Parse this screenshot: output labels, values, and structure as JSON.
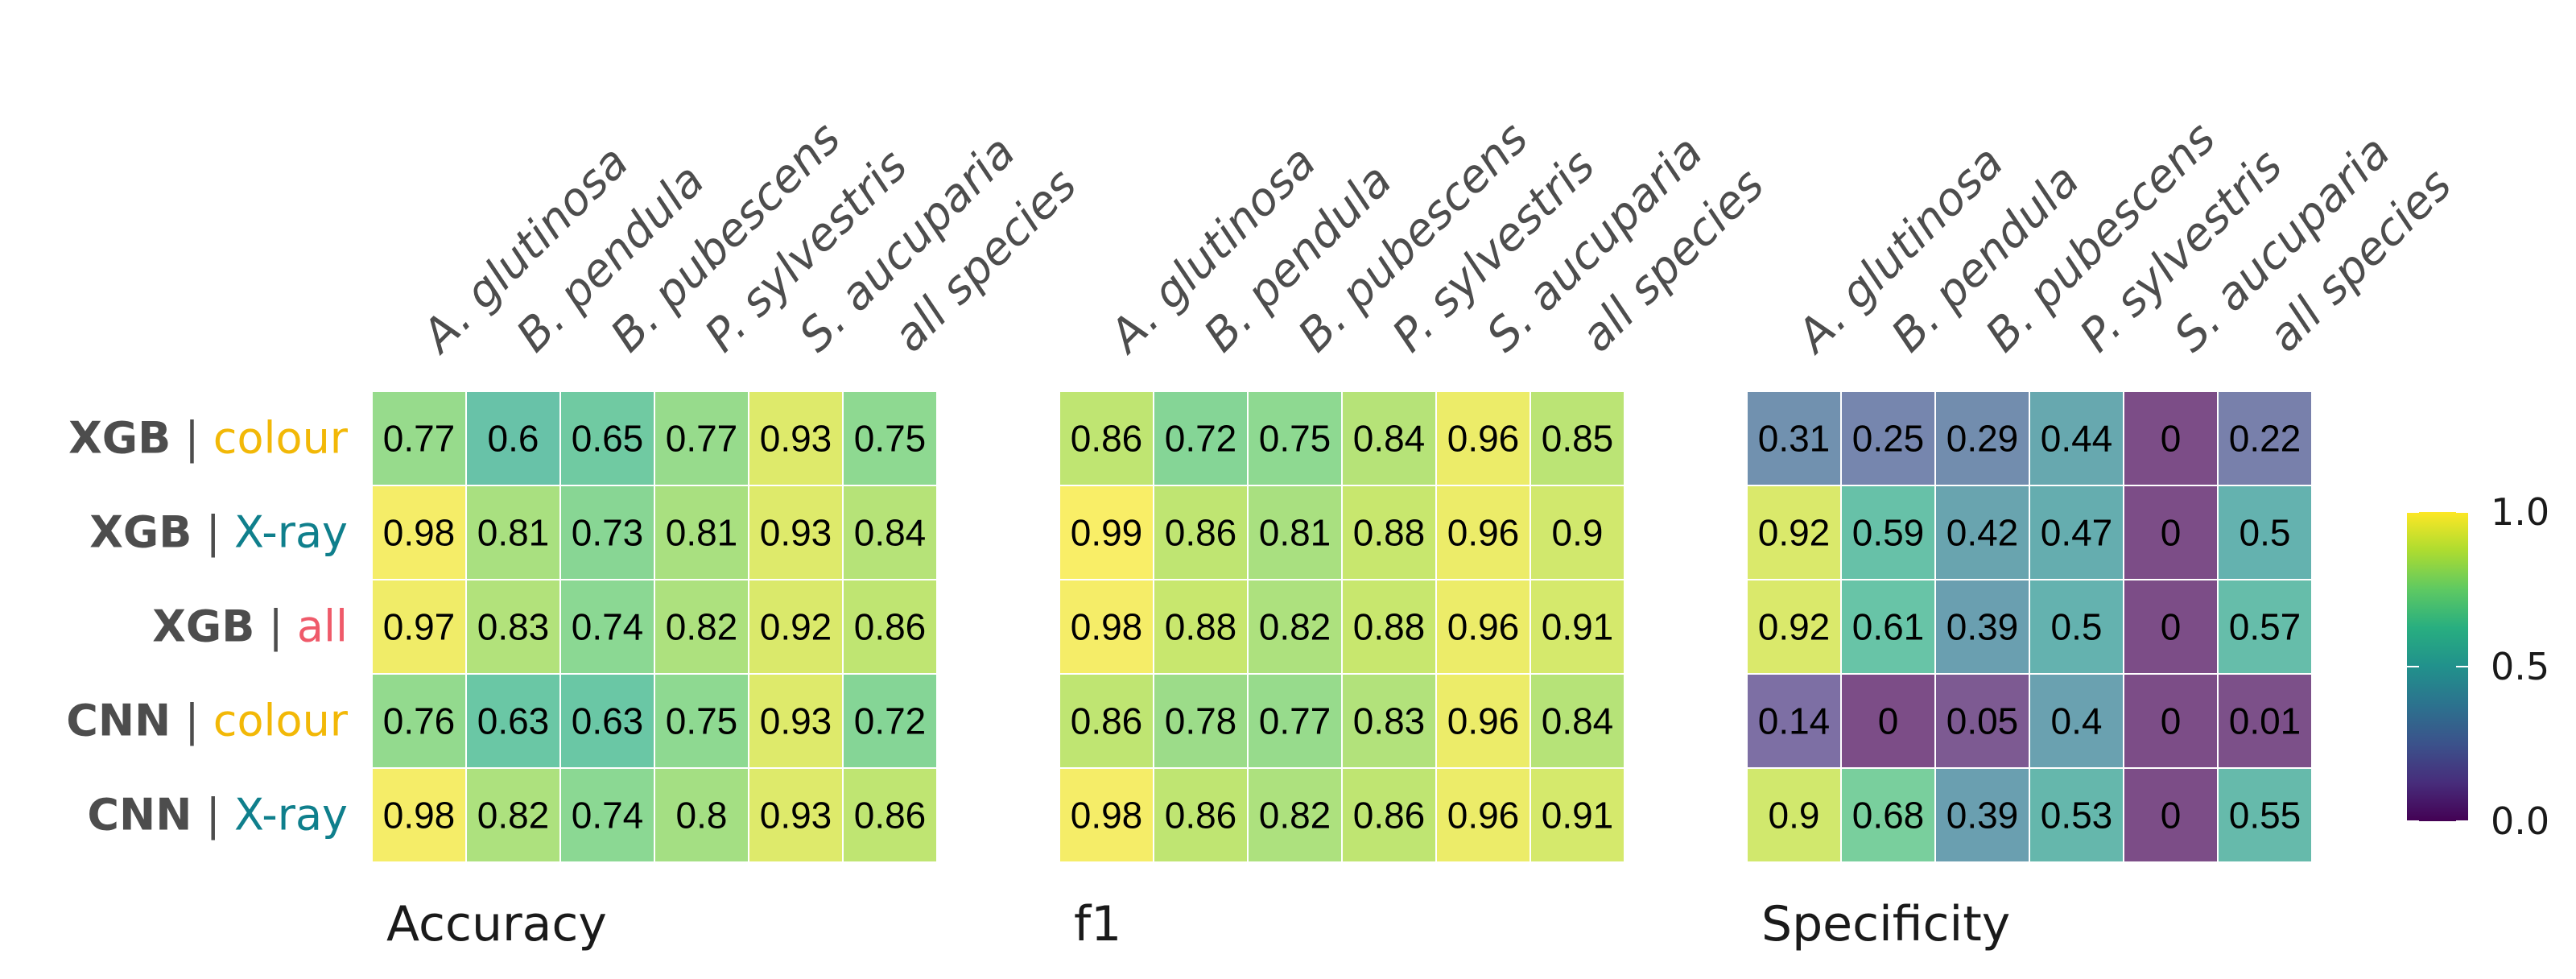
{
  "chart_data": {
    "type": "heatmap",
    "columns": [
      "A. glutinosa",
      "B. pendula",
      "B. pubescens",
      "P. sylvestris",
      "S. aucuparia",
      "all species"
    ],
    "rows": [
      {
        "model": "XGB",
        "separator": "|",
        "features": "colour",
        "color": "#f2b807"
      },
      {
        "model": "XGB",
        "separator": "|",
        "features": "X-ray",
        "color": "#0f7f8c"
      },
      {
        "model": "XGB",
        "separator": "|",
        "features": "all",
        "color": "#ef5a6a"
      },
      {
        "model": "CNN",
        "separator": "|",
        "features": "colour",
        "color": "#f2b807"
      },
      {
        "model": "CNN",
        "separator": "|",
        "features": "X-ray",
        "color": "#0f7f8c"
      }
    ],
    "panels": [
      {
        "title": "Accuracy",
        "values": [
          [
            0.77,
            0.6,
            0.65,
            0.77,
            0.93,
            0.75
          ],
          [
            0.98,
            0.81,
            0.73,
            0.81,
            0.93,
            0.84
          ],
          [
            0.97,
            0.83,
            0.74,
            0.82,
            0.92,
            0.86
          ],
          [
            0.76,
            0.63,
            0.63,
            0.75,
            0.93,
            0.72
          ],
          [
            0.98,
            0.82,
            0.74,
            0.8,
            0.93,
            0.86
          ]
        ]
      },
      {
        "title": "f1",
        "values": [
          [
            0.86,
            0.72,
            0.75,
            0.84,
            0.96,
            0.85
          ],
          [
            0.99,
            0.86,
            0.81,
            0.88,
            0.96,
            0.9
          ],
          [
            0.98,
            0.88,
            0.82,
            0.88,
            0.96,
            0.91
          ],
          [
            0.86,
            0.78,
            0.77,
            0.83,
            0.96,
            0.84
          ],
          [
            0.98,
            0.86,
            0.82,
            0.86,
            0.96,
            0.91
          ]
        ]
      },
      {
        "title": "Specificity",
        "values": [
          [
            0.31,
            0.25,
            0.29,
            0.44,
            0,
            0.22
          ],
          [
            0.92,
            0.59,
            0.42,
            0.47,
            0,
            0.5
          ],
          [
            0.92,
            0.61,
            0.39,
            0.5,
            0,
            0.57
          ],
          [
            0.14,
            0,
            0.05,
            0.4,
            0,
            0.01
          ],
          [
            0.9,
            0.68,
            0.39,
            0.53,
            0,
            0.55
          ]
        ]
      }
    ],
    "color_scale": {
      "name": "viridis",
      "range": [
        0,
        1
      ],
      "ticks": [
        "0.0",
        "0.5",
        "1.0"
      ],
      "tick_values": [
        0,
        0.5,
        1
      ],
      "cell_alpha": 0.7
    },
    "legend_position": "right"
  }
}
